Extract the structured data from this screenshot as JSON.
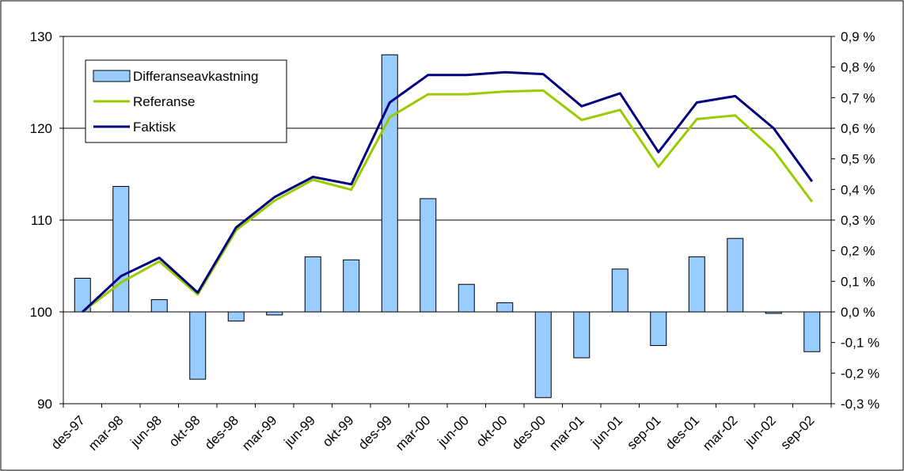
{
  "chart_data": {
    "type": "bar",
    "title": "",
    "xlabel": "",
    "ylabel": "",
    "categories": [
      "des-97",
      "mar-98",
      "jun-98",
      "okt-98",
      "des-98",
      "mar-99",
      "jun-99",
      "okt-99",
      "des-99",
      "mar-00",
      "jun-00",
      "okt-00",
      "des-00",
      "mar-01",
      "jun-01",
      "sep-01",
      "des-01",
      "mar-02",
      "jun-02",
      "sep-02"
    ],
    "left_axis": {
      "ylim": [
        90,
        130
      ],
      "ticks": [
        90,
        100,
        110,
        120,
        130
      ],
      "tick_labels": [
        "90",
        "100",
        "110",
        "120",
        "130"
      ]
    },
    "right_axis": {
      "ylim": [
        -0.3,
        0.9
      ],
      "ticks": [
        -0.3,
        -0.2,
        -0.1,
        0.0,
        0.1,
        0.2,
        0.3,
        0.4,
        0.5,
        0.6,
        0.7,
        0.8,
        0.9
      ],
      "tick_labels": [
        "-0,3 %",
        "-0,2 %",
        "-0,1 %",
        "0,0 %",
        "0,1 %",
        "0,2 %",
        "0,3 %",
        "0,4 %",
        "0,5 %",
        "0,6 %",
        "0,7 %",
        "0,8 %",
        "0,9 %"
      ]
    },
    "grid": true,
    "legend_position": "top-left",
    "series": [
      {
        "name": "Differanseavkastning",
        "type": "bar",
        "axis": "right",
        "color": "#99ccff",
        "values": [
          0.11,
          0.41,
          0.04,
          -0.22,
          -0.03,
          -0.01,
          0.18,
          0.17,
          0.84,
          0.37,
          0.09,
          0.03,
          -0.28,
          -0.15,
          0.14,
          -0.11,
          0.18,
          0.24,
          -0.005,
          -0.13
        ]
      },
      {
        "name": "Referanse",
        "type": "line",
        "axis": "left",
        "color": "#99cc00",
        "values": [
          100.0,
          103.2,
          105.5,
          101.9,
          108.9,
          112.1,
          114.4,
          113.3,
          121.2,
          123.7,
          123.7,
          124.0,
          124.1,
          120.9,
          122.0,
          115.8,
          121.0,
          121.4,
          117.6,
          112.0
        ]
      },
      {
        "name": "Faktisk",
        "type": "line",
        "axis": "left",
        "color": "#000080",
        "values": [
          100.0,
          103.9,
          105.9,
          102.1,
          109.2,
          112.5,
          114.7,
          113.9,
          122.8,
          125.8,
          125.8,
          126.1,
          125.9,
          122.4,
          123.8,
          117.4,
          122.8,
          123.5,
          120.0,
          114.2
        ]
      }
    ]
  }
}
